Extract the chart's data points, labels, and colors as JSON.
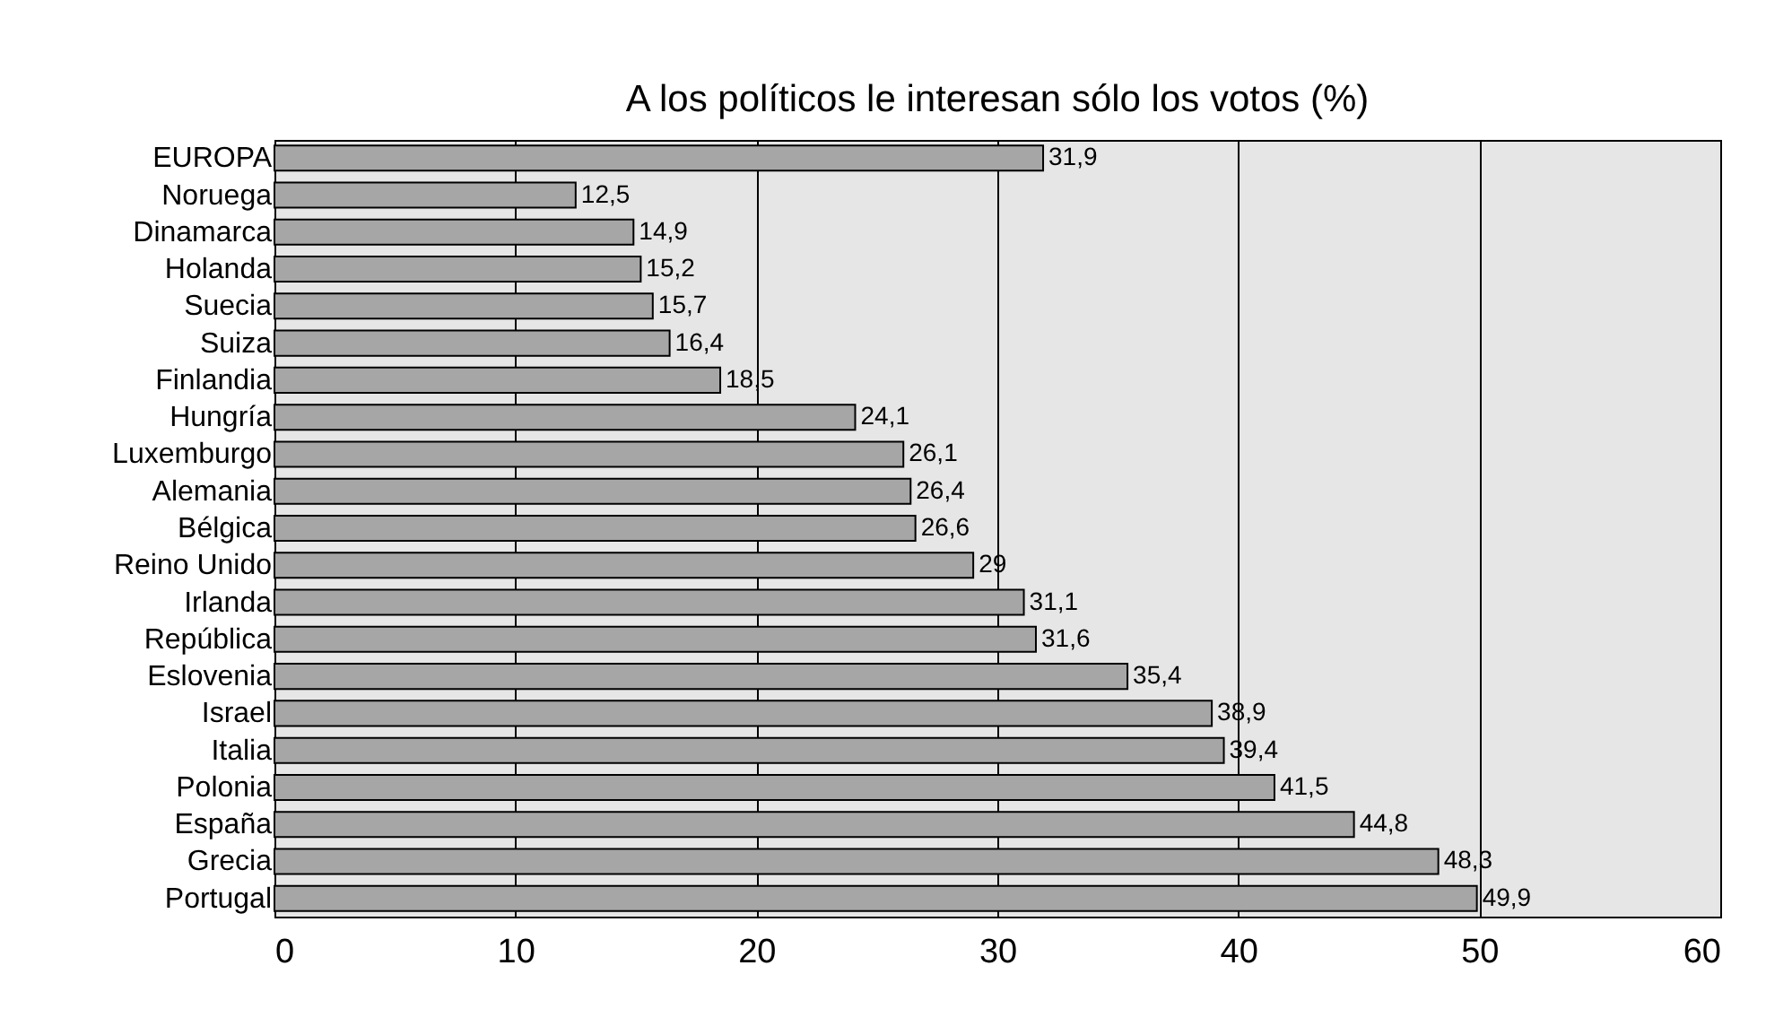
{
  "chart_data": {
    "type": "bar",
    "orientation": "horizontal",
    "title": "A los políticos le interesan sólo los votos (%)",
    "categories": [
      "EUROPA",
      "Noruega",
      "Dinamarca",
      "Holanda",
      "Suecia",
      "Suiza",
      "Finlandia",
      "Hungría",
      "Luxemburgo",
      "Alemania",
      "Bélgica",
      "Reino Unido",
      "Irlanda",
      "República",
      "Eslovenia",
      "Israel",
      "Italia",
      "Polonia",
      "España",
      "Grecia",
      "Portugal"
    ],
    "values": [
      31.9,
      12.5,
      14.9,
      15.2,
      15.7,
      16.4,
      18.5,
      24.1,
      26.1,
      26.4,
      26.6,
      29,
      31.1,
      31.6,
      35.4,
      38.9,
      39.4,
      41.5,
      44.8,
      48.3,
      49.9
    ],
    "value_labels": [
      "31,9",
      "12,5",
      "14,9",
      "15,2",
      "15,7",
      "16,4",
      "18,5",
      "24,1",
      "26,1",
      "26,4",
      "26,6",
      "29",
      "31,1",
      "31,6",
      "35,4",
      "38,9",
      "39,4",
      "41,5",
      "44,8",
      "48,3",
      "49,9"
    ],
    "color": "#a6a6a6",
    "xlim": [
      0,
      60
    ],
    "xticks": [
      0,
      10,
      20,
      30,
      40,
      50,
      60
    ],
    "grid": "x"
  }
}
